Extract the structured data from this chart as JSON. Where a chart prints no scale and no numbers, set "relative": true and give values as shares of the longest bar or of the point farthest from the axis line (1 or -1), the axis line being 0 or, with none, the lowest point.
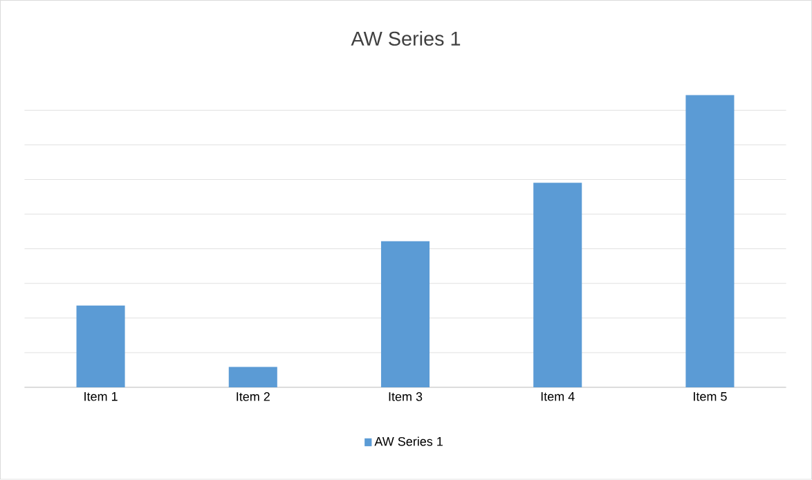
{
  "chart_data": {
    "type": "bar",
    "title": "AW Series 1",
    "relative": true,
    "categories": [
      "Item 1",
      "Item 2",
      "Item 3",
      "Item 4",
      "Item 5"
    ],
    "series": [
      {
        "name": "AW Series 1",
        "color": "#5b9bd5",
        "values": [
          0.28,
          0.07,
          0.5,
          0.7,
          1
        ]
      }
    ],
    "grid": "y",
    "legend": "bottom"
  }
}
